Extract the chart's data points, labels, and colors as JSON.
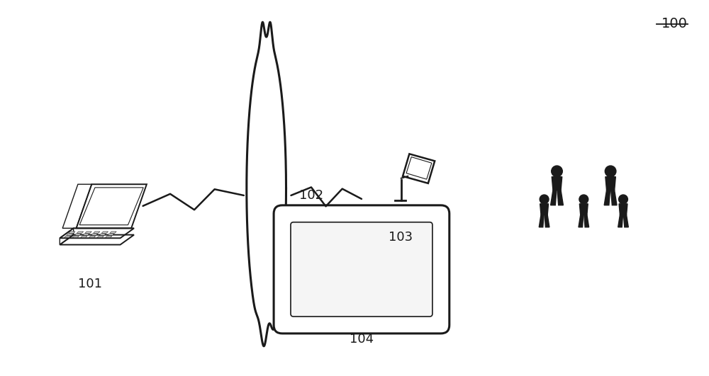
{
  "bg_color": "#ffffff",
  "label_100": "100",
  "label_101": "101",
  "label_102": "102",
  "label_103": "103",
  "label_104": "104",
  "line_color": "#1a1a1a",
  "fill_color": "#1a1a1a",
  "figure_width": 10.0,
  "figure_height": 5.31
}
